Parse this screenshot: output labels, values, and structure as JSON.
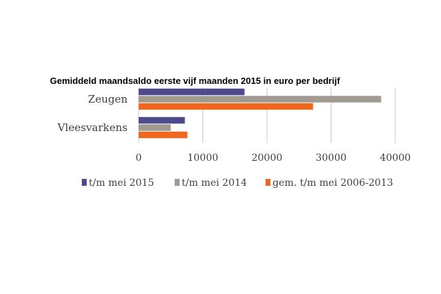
{
  "chart_data": {
    "type": "bar",
    "orientation": "horizontal",
    "title": "Gemiddeld maandsaldo eerste vijf maanden 2015 in euro per bedrijf",
    "xlabel": "",
    "ylabel": "",
    "categories": [
      "Zeugen",
      "Vleesvarkens"
    ],
    "series": [
      {
        "name": "t/m mei 2015",
        "color": "#4f4a8c",
        "values": [
          16500,
          7200
        ]
      },
      {
        "name": "t/m mei 2014",
        "color": "#a09a91",
        "values": [
          37800,
          5000
        ]
      },
      {
        "name": "gem. t/m mei 2006-2013",
        "color": "#f0671f",
        "values": [
          27200,
          7600
        ]
      }
    ],
    "xlim": [
      0,
      40000
    ],
    "xticks": [
      0,
      10000,
      20000,
      30000,
      40000
    ],
    "xtick_labels": [
      "0",
      "10000",
      "20000",
      "30000",
      "40000"
    ],
    "grid": "vertical",
    "legend_position": "bottom"
  }
}
